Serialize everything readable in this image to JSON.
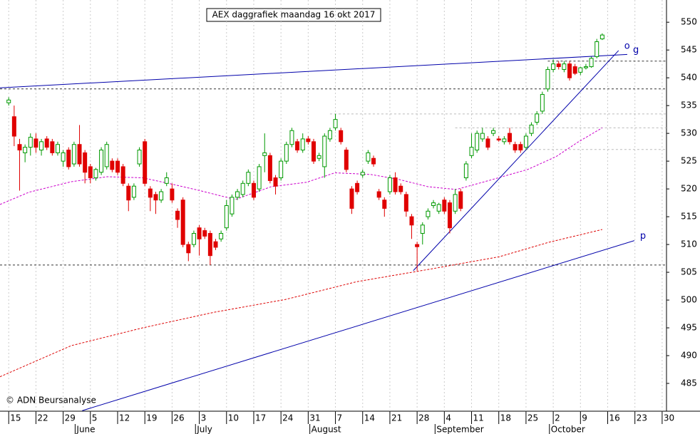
{
  "chart_data": {
    "type": "candlestick",
    "title": "AEX daggrafiek maandag 16 okt 2017",
    "credit": "© ADN Beursanalyse",
    "up_color": "#009900",
    "down_color": "#e00000",
    "ylim": [
      480,
      554
    ],
    "yticks": [
      485,
      490,
      495,
      500,
      505,
      510,
      515,
      520,
      525,
      530,
      535,
      540,
      545,
      550
    ],
    "xlim": [
      -1.6,
      120.8
    ],
    "xticks": [
      {
        "value": 0,
        "label": "15"
      },
      {
        "value": 5,
        "label": "22"
      },
      {
        "value": 10,
        "label": "29"
      },
      {
        "value": 15,
        "label": "5"
      },
      {
        "value": 20,
        "label": "12"
      },
      {
        "value": 25,
        "label": "19"
      },
      {
        "value": 30,
        "label": "26"
      },
      {
        "value": 35,
        "label": "3"
      },
      {
        "value": 40,
        "label": "10"
      },
      {
        "value": 45,
        "label": "17"
      },
      {
        "value": 50,
        "label": "24"
      },
      {
        "value": 55,
        "label": "31"
      },
      {
        "value": 60,
        "label": "7"
      },
      {
        "value": 65,
        "label": "14"
      },
      {
        "value": 70,
        "label": "21"
      },
      {
        "value": 75,
        "label": "28"
      },
      {
        "value": 80,
        "label": "4"
      },
      {
        "value": 85,
        "label": "11"
      },
      {
        "value": 90,
        "label": "18"
      },
      {
        "value": 95,
        "label": "25"
      },
      {
        "value": 100,
        "label": "2"
      },
      {
        "value": 105,
        "label": "9"
      },
      {
        "value": 110,
        "label": "16"
      },
      {
        "value": 115,
        "label": "23"
      },
      {
        "value": 120,
        "label": "30"
      }
    ],
    "months": [
      {
        "value": 12.2,
        "label": "June"
      },
      {
        "value": 34.3,
        "label": "July"
      },
      {
        "value": 55.3,
        "label": "August"
      },
      {
        "value": 78.3,
        "label": "September"
      },
      {
        "value": 99.3,
        "label": "October"
      }
    ],
    "open": [
      535.5,
      533,
      528,
      526.5,
      527.5,
      529,
      527,
      529,
      528.5,
      526.5,
      525,
      527,
      524.5,
      528,
      526.5,
      524,
      522,
      523,
      524,
      525,
      525,
      524,
      520.5,
      518.5,
      524.5,
      528.5,
      520,
      519,
      518,
      521,
      520,
      516,
      518,
      510,
      510,
      513,
      512.5,
      512,
      510.5,
      511,
      513,
      515.5,
      518.5,
      519,
      521,
      521,
      520,
      526,
      526,
      522,
      522,
      525,
      528,
      528.5,
      527,
      529,
      528.5,
      525.5,
      524,
      529,
      531,
      530.5,
      527,
      520,
      521,
      522.5,
      525,
      525.5,
      519.5,
      518,
      519.5,
      522,
      520.5,
      519,
      515,
      510,
      512,
      515,
      517,
      516,
      518,
      517.5,
      516,
      519.5,
      522,
      526,
      527,
      529,
      529,
      530,
      529,
      528.5,
      530,
      528,
      528,
      527.5,
      530,
      532,
      534,
      538,
      541.5,
      542.5,
      541.5,
      542.5,
      542,
      541,
      541.8,
      542,
      543.8,
      547
    ],
    "high": [
      536.5,
      535,
      529,
      528,
      530,
      530,
      529,
      529.5,
      529,
      528.5,
      527,
      527.5,
      528.5,
      531.5,
      527,
      524.5,
      523.8,
      527.5,
      528.5,
      525.5,
      525.5,
      524.5,
      521,
      521,
      527.5,
      529,
      520.5,
      519.5,
      520,
      523,
      521,
      516.5,
      518.5,
      510.5,
      512.5,
      513.5,
      513,
      512.5,
      511,
      512.5,
      518,
      519,
      520,
      521.5,
      523.5,
      521.5,
      524.5,
      530,
      526.5,
      522.5,
      525.5,
      528.5,
      531,
      529,
      530,
      529.5,
      529,
      526.5,
      530,
      531,
      533.5,
      531,
      527.5,
      520.5,
      521.5,
      523.5,
      527,
      526,
      520,
      518.5,
      522.5,
      523,
      521,
      519.5,
      515.5,
      510.5,
      514,
      516.5,
      518,
      517.5,
      518.5,
      518,
      520,
      520,
      525,
      530,
      530.5,
      531,
      529.5,
      531,
      529.5,
      529.5,
      531,
      528.5,
      528.5,
      530,
      532,
      534,
      537.5,
      542,
      543.3,
      543,
      543,
      543,
      542.5,
      542,
      542.5,
      543.8,
      547,
      548
    ],
    "low": [
      535,
      527.7,
      519.7,
      524.8,
      526,
      526.5,
      526,
      527,
      526,
      526,
      524,
      523.5,
      524,
      524,
      521,
      521,
      521.5,
      522.5,
      523.5,
      523,
      522.5,
      520.5,
      516,
      518,
      524,
      520.5,
      516,
      515.5,
      517.5,
      520.5,
      517.5,
      513,
      509.5,
      507,
      509.5,
      508,
      511,
      506.3,
      509,
      510.5,
      512.5,
      515,
      518,
      518.5,
      520.5,
      518,
      519.5,
      523,
      521,
      519,
      521.5,
      524.5,
      527.5,
      526.5,
      526.5,
      528,
      524.5,
      525,
      522,
      528.5,
      530.5,
      528,
      523,
      515.5,
      519,
      522,
      524.5,
      524,
      518,
      515,
      519,
      519,
      519,
      515,
      511,
      505.3,
      510,
      514.5,
      516.5,
      515.5,
      515.5,
      512,
      515.5,
      516,
      521.5,
      525.5,
      526.5,
      528.5,
      527,
      529.5,
      528.5,
      528,
      528,
      526.5,
      526.5,
      527,
      529.5,
      531.5,
      533.5,
      537.5,
      541,
      541.5,
      541,
      539.5,
      540.5,
      540.5,
      541.5,
      541.8,
      543.5,
      546.8
    ],
    "close": [
      536,
      529.5,
      527,
      527.5,
      529.3,
      527.5,
      528.5,
      527.5,
      526.5,
      528,
      526.5,
      524,
      528,
      524.5,
      523,
      522,
      523.5,
      527,
      528,
      523.5,
      523,
      521,
      518,
      520.5,
      527,
      521,
      518.5,
      518,
      519.5,
      522,
      518,
      514.5,
      510,
      508.5,
      512,
      511,
      511.5,
      508,
      509.5,
      512,
      517,
      518.5,
      519.5,
      521,
      523,
      518.5,
      524,
      526.5,
      521.5,
      520.5,
      525,
      528,
      530.5,
      527,
      529,
      528.5,
      525,
      526,
      529.5,
      530.5,
      532.5,
      528.5,
      523.5,
      516.5,
      519.5,
      523,
      526.5,
      524.5,
      518.5,
      516.5,
      522,
      519.5,
      519.5,
      516,
      513.5,
      509.6,
      513.5,
      516,
      517.5,
      517.2,
      516,
      513,
      519,
      516.5,
      524.5,
      527.5,
      530,
      530,
      527.5,
      530.5,
      528.8,
      529,
      528.5,
      527,
      527,
      529.5,
      531.5,
      533.5,
      537,
      541.5,
      542.5,
      542,
      542.5,
      540,
      540.8,
      541.8,
      542,
      543.5,
      546.5,
      547.7
    ],
    "moving_averages": [
      {
        "color": "#cc00cc",
        "x": [
          -1.6,
          3.7,
          11.5,
          18.1,
          24.6,
          29.8,
          35.1,
          41.6,
          48.2,
          54.7,
          59.9,
          66.5,
          71.7,
          77,
          82.2,
          87.4,
          95.3,
          100.5,
          104.5,
          109
        ],
        "values": [
          517.2,
          519.4,
          521.3,
          522.2,
          522,
          520.9,
          519.7,
          518.1,
          520.4,
          521.2,
          522.9,
          522.6,
          521.7,
          520.4,
          519.9,
          521.3,
          523.5,
          525.8,
          528.4,
          531
        ]
      },
      {
        "color": "#dd0000",
        "x": [
          -1.6,
          11.5,
          24.6,
          37.7,
          50.8,
          63.9,
          77,
          90.1,
          99.2,
          109
        ],
        "values": [
          486.2,
          491.8,
          495,
          497.8,
          500.1,
          503.3,
          505.5,
          507.8,
          510.4,
          512.7
        ]
      }
    ],
    "trendlines": [
      {
        "label": "g",
        "color": "#0000aa",
        "x": [
          -1.6,
          113.6
        ],
        "values": [
          538.2,
          544.2
        ]
      },
      {
        "label": "o",
        "color": "#0000aa",
        "x": [
          74.3,
          112
        ],
        "values": [
          505.3,
          544.9
        ]
      },
      {
        "label": "p",
        "color": "#0000aa",
        "x": [
          13.5,
          114.9
        ],
        "values": [
          480.1,
          510.7
        ]
      }
    ],
    "levels": [
      {
        "value": 543,
        "from": 99,
        "color": "#333333"
      },
      {
        "value": 538,
        "from": -1.6,
        "color": "#333333"
      },
      {
        "value": 506.3,
        "from": -1.6,
        "color": "#333333"
      },
      {
        "value": 533.5,
        "from": 59,
        "color": "#bbbbbb"
      },
      {
        "value": 531,
        "from": 82,
        "color": "#bbbbbb"
      },
      {
        "value": 527.1,
        "from": 95,
        "color": "#bbbbbb"
      }
    ]
  }
}
